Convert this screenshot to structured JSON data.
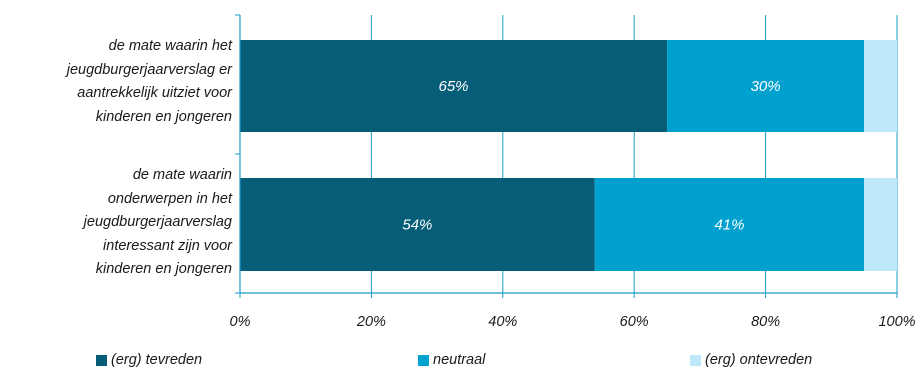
{
  "chart_data": {
    "type": "bar",
    "orientation": "horizontal",
    "stacked": true,
    "categories": [
      "de mate waarin het jeugdburgerjaarverslag er aantrekkelijk uitziet voor kinderen en jongeren",
      "de mate waarin onderwerpen in het jeugdburgerjaarverslag interessant zijn voor kinderen en jongeren"
    ],
    "category_lines": [
      [
        "de mate waarin het",
        "jeugdburgerjaarverslag er",
        "aantrekkelijk uitziet voor",
        "kinderen en jongeren"
      ],
      [
        "de mate waarin",
        "onderwerpen in het",
        "jeugdburgerjaarverslag",
        "interessant zijn voor",
        "kinderen en jongeren"
      ]
    ],
    "series": [
      {
        "name": "(erg) tevreden",
        "values": [
          65,
          54
        ],
        "labels": [
          "65%",
          "54%"
        ],
        "color": "#065D78"
      },
      {
        "name": "neutraal",
        "values": [
          30,
          41
        ],
        "labels": [
          "30%",
          "41%"
        ],
        "color": "#00A0CF"
      },
      {
        "name": "(erg) ontevreden",
        "values": [
          5,
          5
        ],
        "labels": [
          "",
          ""
        ],
        "color": "#BFE9FA"
      }
    ],
    "xlim": [
      0,
      100
    ],
    "x_ticks": [
      "0%",
      "20%",
      "40%",
      "60%",
      "80%",
      "100%"
    ],
    "grid": true,
    "legend_position": "bottom",
    "title": "",
    "xlabel": "",
    "ylabel": "",
    "colors": {
      "gridline": "#1A9CC8",
      "axis": "#1A9CC8",
      "data_label": "#FFFFFF"
    }
  }
}
